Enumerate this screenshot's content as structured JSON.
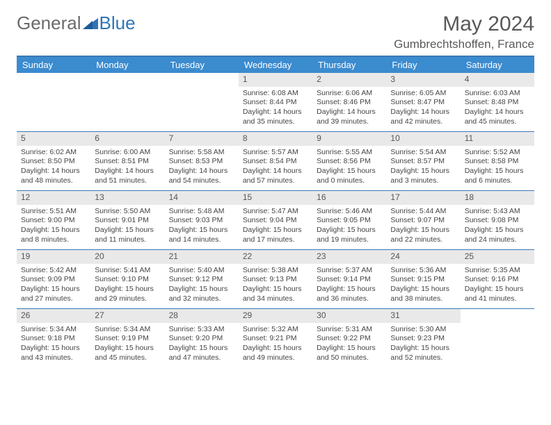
{
  "logo": {
    "text1": "General",
    "text2": "Blue"
  },
  "title": "May 2024",
  "location": "Gumbrechtshoffen, France",
  "colors": {
    "header_bg": "#3b8bcf",
    "rule": "#3b77b6",
    "daynum_bg": "#e9e9e9",
    "text": "#444444",
    "title_text": "#595959",
    "logo_gray": "#6b6b6b",
    "logo_blue": "#2f74b5"
  },
  "day_names": [
    "Sunday",
    "Monday",
    "Tuesday",
    "Wednesday",
    "Thursday",
    "Friday",
    "Saturday"
  ],
  "weeks": [
    [
      null,
      null,
      null,
      {
        "n": "1",
        "sr": "6:08 AM",
        "ss": "8:44 PM",
        "dl": "14 hours and 35 minutes."
      },
      {
        "n": "2",
        "sr": "6:06 AM",
        "ss": "8:46 PM",
        "dl": "14 hours and 39 minutes."
      },
      {
        "n": "3",
        "sr": "6:05 AM",
        "ss": "8:47 PM",
        "dl": "14 hours and 42 minutes."
      },
      {
        "n": "4",
        "sr": "6:03 AM",
        "ss": "8:48 PM",
        "dl": "14 hours and 45 minutes."
      }
    ],
    [
      {
        "n": "5",
        "sr": "6:02 AM",
        "ss": "8:50 PM",
        "dl": "14 hours and 48 minutes."
      },
      {
        "n": "6",
        "sr": "6:00 AM",
        "ss": "8:51 PM",
        "dl": "14 hours and 51 minutes."
      },
      {
        "n": "7",
        "sr": "5:58 AM",
        "ss": "8:53 PM",
        "dl": "14 hours and 54 minutes."
      },
      {
        "n": "8",
        "sr": "5:57 AM",
        "ss": "8:54 PM",
        "dl": "14 hours and 57 minutes."
      },
      {
        "n": "9",
        "sr": "5:55 AM",
        "ss": "8:56 PM",
        "dl": "15 hours and 0 minutes."
      },
      {
        "n": "10",
        "sr": "5:54 AM",
        "ss": "8:57 PM",
        "dl": "15 hours and 3 minutes."
      },
      {
        "n": "11",
        "sr": "5:52 AM",
        "ss": "8:58 PM",
        "dl": "15 hours and 6 minutes."
      }
    ],
    [
      {
        "n": "12",
        "sr": "5:51 AM",
        "ss": "9:00 PM",
        "dl": "15 hours and 8 minutes."
      },
      {
        "n": "13",
        "sr": "5:50 AM",
        "ss": "9:01 PM",
        "dl": "15 hours and 11 minutes."
      },
      {
        "n": "14",
        "sr": "5:48 AM",
        "ss": "9:03 PM",
        "dl": "15 hours and 14 minutes."
      },
      {
        "n": "15",
        "sr": "5:47 AM",
        "ss": "9:04 PM",
        "dl": "15 hours and 17 minutes."
      },
      {
        "n": "16",
        "sr": "5:46 AM",
        "ss": "9:05 PM",
        "dl": "15 hours and 19 minutes."
      },
      {
        "n": "17",
        "sr": "5:44 AM",
        "ss": "9:07 PM",
        "dl": "15 hours and 22 minutes."
      },
      {
        "n": "18",
        "sr": "5:43 AM",
        "ss": "9:08 PM",
        "dl": "15 hours and 24 minutes."
      }
    ],
    [
      {
        "n": "19",
        "sr": "5:42 AM",
        "ss": "9:09 PM",
        "dl": "15 hours and 27 minutes."
      },
      {
        "n": "20",
        "sr": "5:41 AM",
        "ss": "9:10 PM",
        "dl": "15 hours and 29 minutes."
      },
      {
        "n": "21",
        "sr": "5:40 AM",
        "ss": "9:12 PM",
        "dl": "15 hours and 32 minutes."
      },
      {
        "n": "22",
        "sr": "5:38 AM",
        "ss": "9:13 PM",
        "dl": "15 hours and 34 minutes."
      },
      {
        "n": "23",
        "sr": "5:37 AM",
        "ss": "9:14 PM",
        "dl": "15 hours and 36 minutes."
      },
      {
        "n": "24",
        "sr": "5:36 AM",
        "ss": "9:15 PM",
        "dl": "15 hours and 38 minutes."
      },
      {
        "n": "25",
        "sr": "5:35 AM",
        "ss": "9:16 PM",
        "dl": "15 hours and 41 minutes."
      }
    ],
    [
      {
        "n": "26",
        "sr": "5:34 AM",
        "ss": "9:18 PM",
        "dl": "15 hours and 43 minutes."
      },
      {
        "n": "27",
        "sr": "5:34 AM",
        "ss": "9:19 PM",
        "dl": "15 hours and 45 minutes."
      },
      {
        "n": "28",
        "sr": "5:33 AM",
        "ss": "9:20 PM",
        "dl": "15 hours and 47 minutes."
      },
      {
        "n": "29",
        "sr": "5:32 AM",
        "ss": "9:21 PM",
        "dl": "15 hours and 49 minutes."
      },
      {
        "n": "30",
        "sr": "5:31 AM",
        "ss": "9:22 PM",
        "dl": "15 hours and 50 minutes."
      },
      {
        "n": "31",
        "sr": "5:30 AM",
        "ss": "9:23 PM",
        "dl": "15 hours and 52 minutes."
      },
      null
    ]
  ],
  "labels": {
    "sunrise": "Sunrise: ",
    "sunset": "Sunset: ",
    "daylight": "Daylight: "
  }
}
